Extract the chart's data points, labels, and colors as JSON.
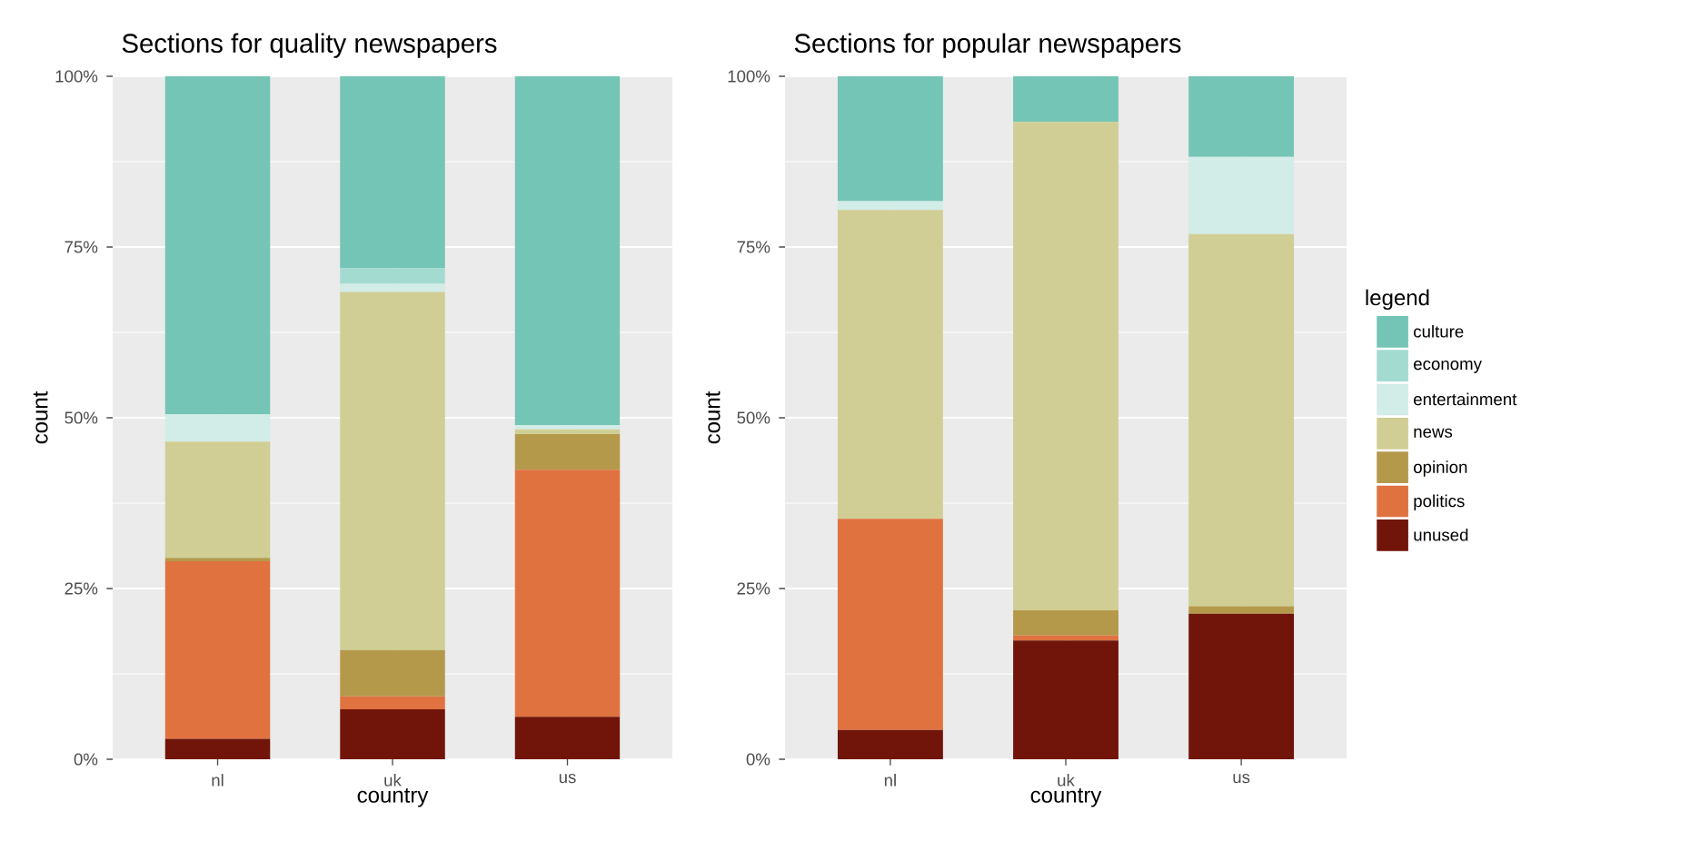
{
  "chart_data": [
    {
      "type": "bar",
      "stacked": true,
      "title": "Sections for quality newspapers",
      "xlabel": "country",
      "ylabel": "count",
      "categories": [
        "nl",
        "uk",
        "us"
      ],
      "ylim": [
        0,
        100
      ],
      "yticks": [
        {
          "value": 0,
          "label": "0%"
        },
        {
          "value": 25,
          "label": "25%"
        },
        {
          "value": 50,
          "label": "50%"
        },
        {
          "value": 75,
          "label": "75%"
        },
        {
          "value": 100,
          "label": "100%"
        }
      ],
      "grid": true,
      "series": [
        {
          "color": "#711409",
          "values": [
            3,
            7.3,
            6.2
          ]
        },
        {
          "color": "#e07240",
          "values": [
            26,
            1.9,
            36.2
          ]
        },
        {
          "color": "#b5994b",
          "values": [
            0.5,
            6.8,
            5.2
          ]
        },
        {
          "color": "#d0ce94",
          "values": [
            17,
            52.4,
            0.7
          ]
        },
        {
          "color": "#d2ece7",
          "values": [
            4,
            1.2,
            0.6
          ]
        },
        {
          "color": "#a3dbd0",
          "values": [
            0,
            2.3,
            0
          ]
        },
        {
          "color": "#74c5b5",
          "values": [
            49.5,
            28.1,
            51.1
          ]
        }
      ]
    },
    {
      "type": "bar",
      "stacked": true,
      "title": "Sections for popular newspapers",
      "xlabel": "country",
      "ylabel": "count",
      "categories": [
        "nl",
        "uk",
        "us"
      ],
      "ylim": [
        0,
        100
      ],
      "yticks": [
        {
          "value": 0,
          "label": "0%"
        },
        {
          "value": 25,
          "label": "25%"
        },
        {
          "value": 50,
          "label": "50%"
        },
        {
          "value": 75,
          "label": "75%"
        },
        {
          "value": 100,
          "label": "100%"
        }
      ],
      "grid": true,
      "legend": "right",
      "legend_title": "legend",
      "series": [
        {
          "name": "unused",
          "color": "#711409",
          "values": [
            4.3,
            17.4,
            21.3
          ]
        },
        {
          "name": "politics",
          "color": "#e07240",
          "values": [
            30.9,
            0.7,
            0
          ]
        },
        {
          "name": "opinion",
          "color": "#b5994b",
          "values": [
            0,
            3.7,
            1.1
          ]
        },
        {
          "name": "news",
          "color": "#d0ce94",
          "values": [
            45.2,
            71.5,
            54.5
          ]
        },
        {
          "name": "entertainment",
          "color": "#d2ece7",
          "values": [
            1.3,
            0,
            11.3
          ]
        },
        {
          "name": "economy",
          "color": "#a3dbd0",
          "values": [
            0,
            0,
            0
          ]
        },
        {
          "name": "culture",
          "color": "#74c5b5",
          "values": [
            18.3,
            6.7,
            11.8
          ]
        }
      ]
    }
  ]
}
